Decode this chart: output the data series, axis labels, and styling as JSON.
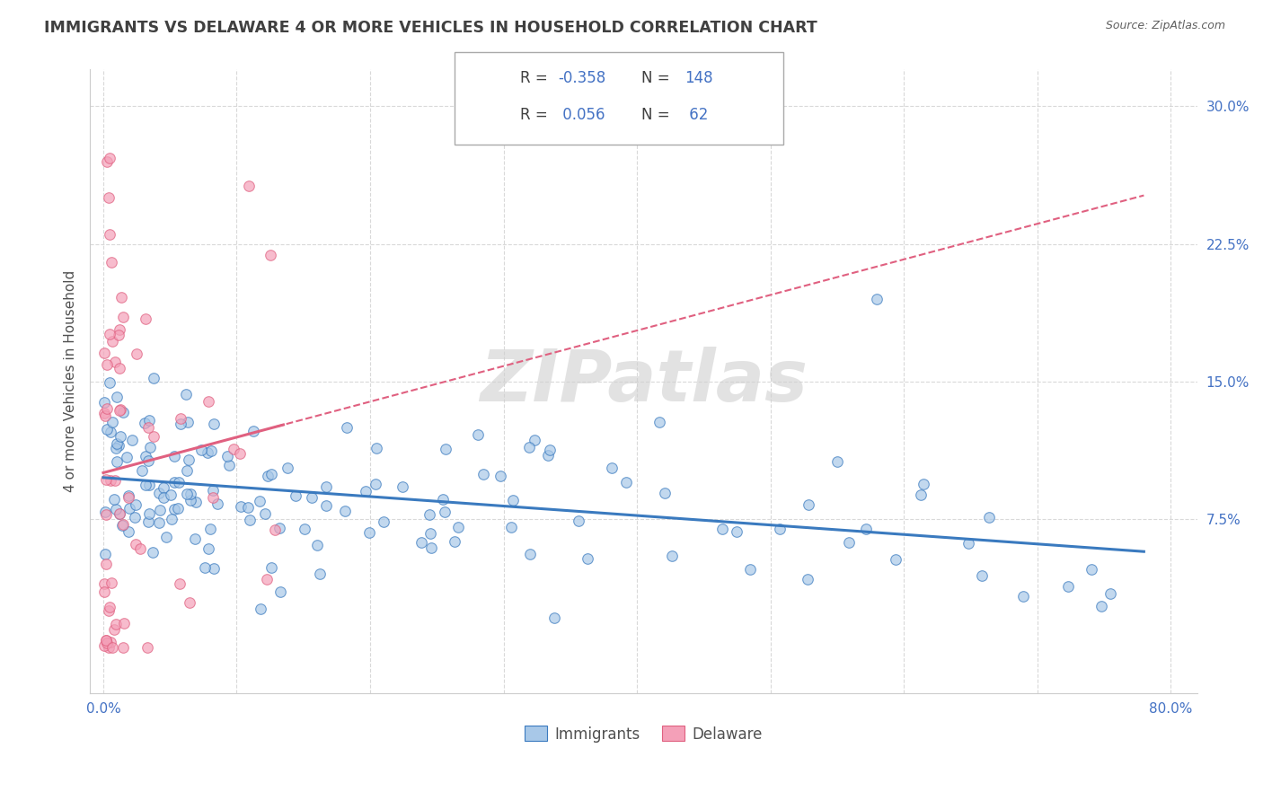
{
  "title": "IMMIGRANTS VS DELAWARE 4 OR MORE VEHICLES IN HOUSEHOLD CORRELATION CHART",
  "source_text": "Source: ZipAtlas.com",
  "ylabel": "4 or more Vehicles in Household",
  "watermark": "ZIPatlas",
  "xlim": [
    -0.01,
    0.82
  ],
  "ylim": [
    -0.02,
    0.32
  ],
  "xticks": [
    0.0,
    0.1,
    0.2,
    0.3,
    0.4,
    0.5,
    0.6,
    0.7,
    0.8
  ],
  "xticklabels": [
    "0.0%",
    "",
    "",
    "",
    "",
    "",
    "",
    "",
    "80.0%"
  ],
  "yticks": [
    0.075,
    0.15,
    0.225,
    0.3
  ],
  "yticklabels": [
    "7.5%",
    "15.0%",
    "22.5%",
    "30.0%"
  ],
  "legend_r_blue": "-0.358",
  "legend_n_blue": "148",
  "legend_r_pink": "0.056",
  "legend_n_pink": "62",
  "legend_label_blue": "Immigrants",
  "legend_label_pink": "Delaware",
  "scatter_blue_color": "#a8c8e8",
  "scatter_pink_color": "#f4a0b8",
  "line_blue_color": "#3a7abf",
  "line_pink_color": "#e06080",
  "tick_label_color": "#4472c4",
  "title_color": "#404040",
  "source_color": "#606060",
  "watermark_color": "#d0d0d0",
  "background_color": "#ffffff",
  "grid_color": "#d0d0d0",
  "legend_num_color": "#4472c4",
  "legend_text_color": "#404040"
}
